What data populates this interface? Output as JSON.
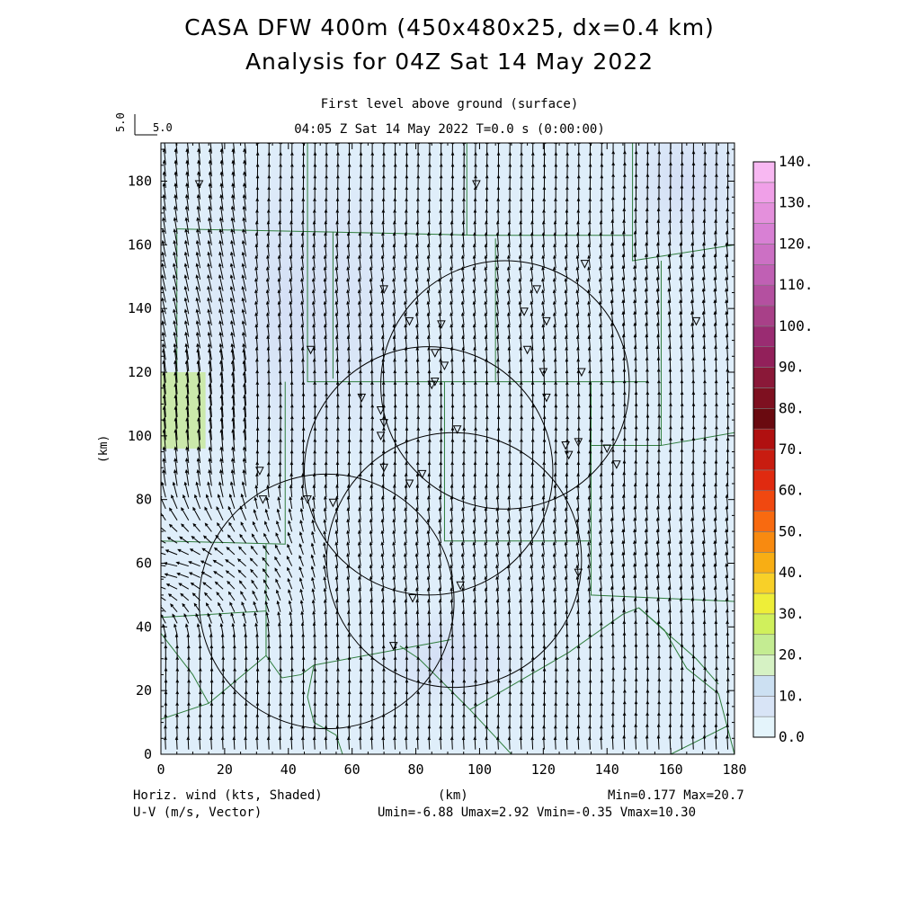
{
  "header": {
    "title_line1": "CASA DFW 400m (450x480x25, dx=0.4 km)",
    "title_line2": "Analysis for 04Z Sat 14 May 2022",
    "level": "First level above ground (surface)",
    "time": "04:05 Z Sat 14 May 2022    T=0.0 s (0:00:00)",
    "ref_vector_value": "5.0",
    "ref_vector_label": "5.0"
  },
  "footer": {
    "left1": "Horiz. wind (kts, Shaded)",
    "left2": "U-V (m/s, Vector)",
    "xunit": "(km)",
    "minmax": "Min=0.177 Max=20.7",
    "uvstats": "Umin=-6.88 Umax=2.92 Vmin=-0.35 Vmax=10.30"
  },
  "chart_data": {
    "type": "heatmap",
    "xlabel": "(km)",
    "ylabel": "(km)",
    "xlim": [
      0,
      180
    ],
    "ylim": [
      0,
      192
    ],
    "xticks": [
      0,
      20,
      40,
      60,
      80,
      100,
      120,
      140,
      160,
      180
    ],
    "yticks": [
      0,
      20,
      40,
      60,
      80,
      100,
      120,
      140,
      160,
      180
    ],
    "field_min": 0.177,
    "field_max": 20.7,
    "colorbar": {
      "labels": [
        "0.0",
        "10.",
        "20.",
        "30.",
        "40.",
        "50.",
        "60.",
        "70.",
        "80.",
        "90.",
        "100.",
        "110.",
        "120.",
        "130.",
        "140."
      ],
      "colors": [
        "#e4f4fb",
        "#d8e4f6",
        "#cce0f2",
        "#d6f2c4",
        "#c4ec92",
        "#d0f05c",
        "#eeee38",
        "#f8d028",
        "#f8ae14",
        "#f88a10",
        "#f86a10",
        "#f04810",
        "#e02a10",
        "#c81c10",
        "#b01010",
        "#6a0a10",
        "#7e1020",
        "#8a1838",
        "#92205a",
        "#9a2c72",
        "#a84088",
        "#b450a0",
        "#c060b4",
        "#cc70c4",
        "#d880d4",
        "#e490dc",
        "#f0a0e8",
        "#f8b8f2"
      ]
    },
    "radar_circles": [
      {
        "center": [
          108,
          116
        ],
        "radius": 39
      },
      {
        "center": [
          84,
          89
        ],
        "radius": 39
      },
      {
        "center": [
          92,
          61
        ],
        "radius": 40
      },
      {
        "center": [
          52,
          48
        ],
        "radius": 40
      }
    ],
    "stations": [
      [
        12,
        179
      ],
      [
        99,
        179
      ],
      [
        70,
        146
      ],
      [
        133,
        154
      ],
      [
        118,
        146
      ],
      [
        47,
        127
      ],
      [
        78,
        136
      ],
      [
        88,
        135
      ],
      [
        114,
        139
      ],
      [
        121,
        136
      ],
      [
        115,
        127
      ],
      [
        120,
        120
      ],
      [
        86,
        126
      ],
      [
        89,
        122
      ],
      [
        86,
        117
      ],
      [
        132,
        120
      ],
      [
        63,
        112
      ],
      [
        69,
        108
      ],
      [
        70,
        104
      ],
      [
        69,
        100
      ],
      [
        85,
        116
      ],
      [
        93,
        102
      ],
      [
        121,
        112
      ],
      [
        127,
        97
      ],
      [
        131,
        98
      ],
      [
        140,
        96
      ],
      [
        143,
        91
      ],
      [
        128,
        94
      ],
      [
        70,
        90
      ],
      [
        82,
        88
      ],
      [
        78,
        85
      ],
      [
        31,
        89
      ],
      [
        32,
        80
      ],
      [
        46,
        80
      ],
      [
        54,
        79
      ],
      [
        131,
        57
      ],
      [
        94,
        53
      ],
      [
        79,
        49
      ],
      [
        73,
        34
      ],
      [
        168,
        136
      ]
    ]
  }
}
